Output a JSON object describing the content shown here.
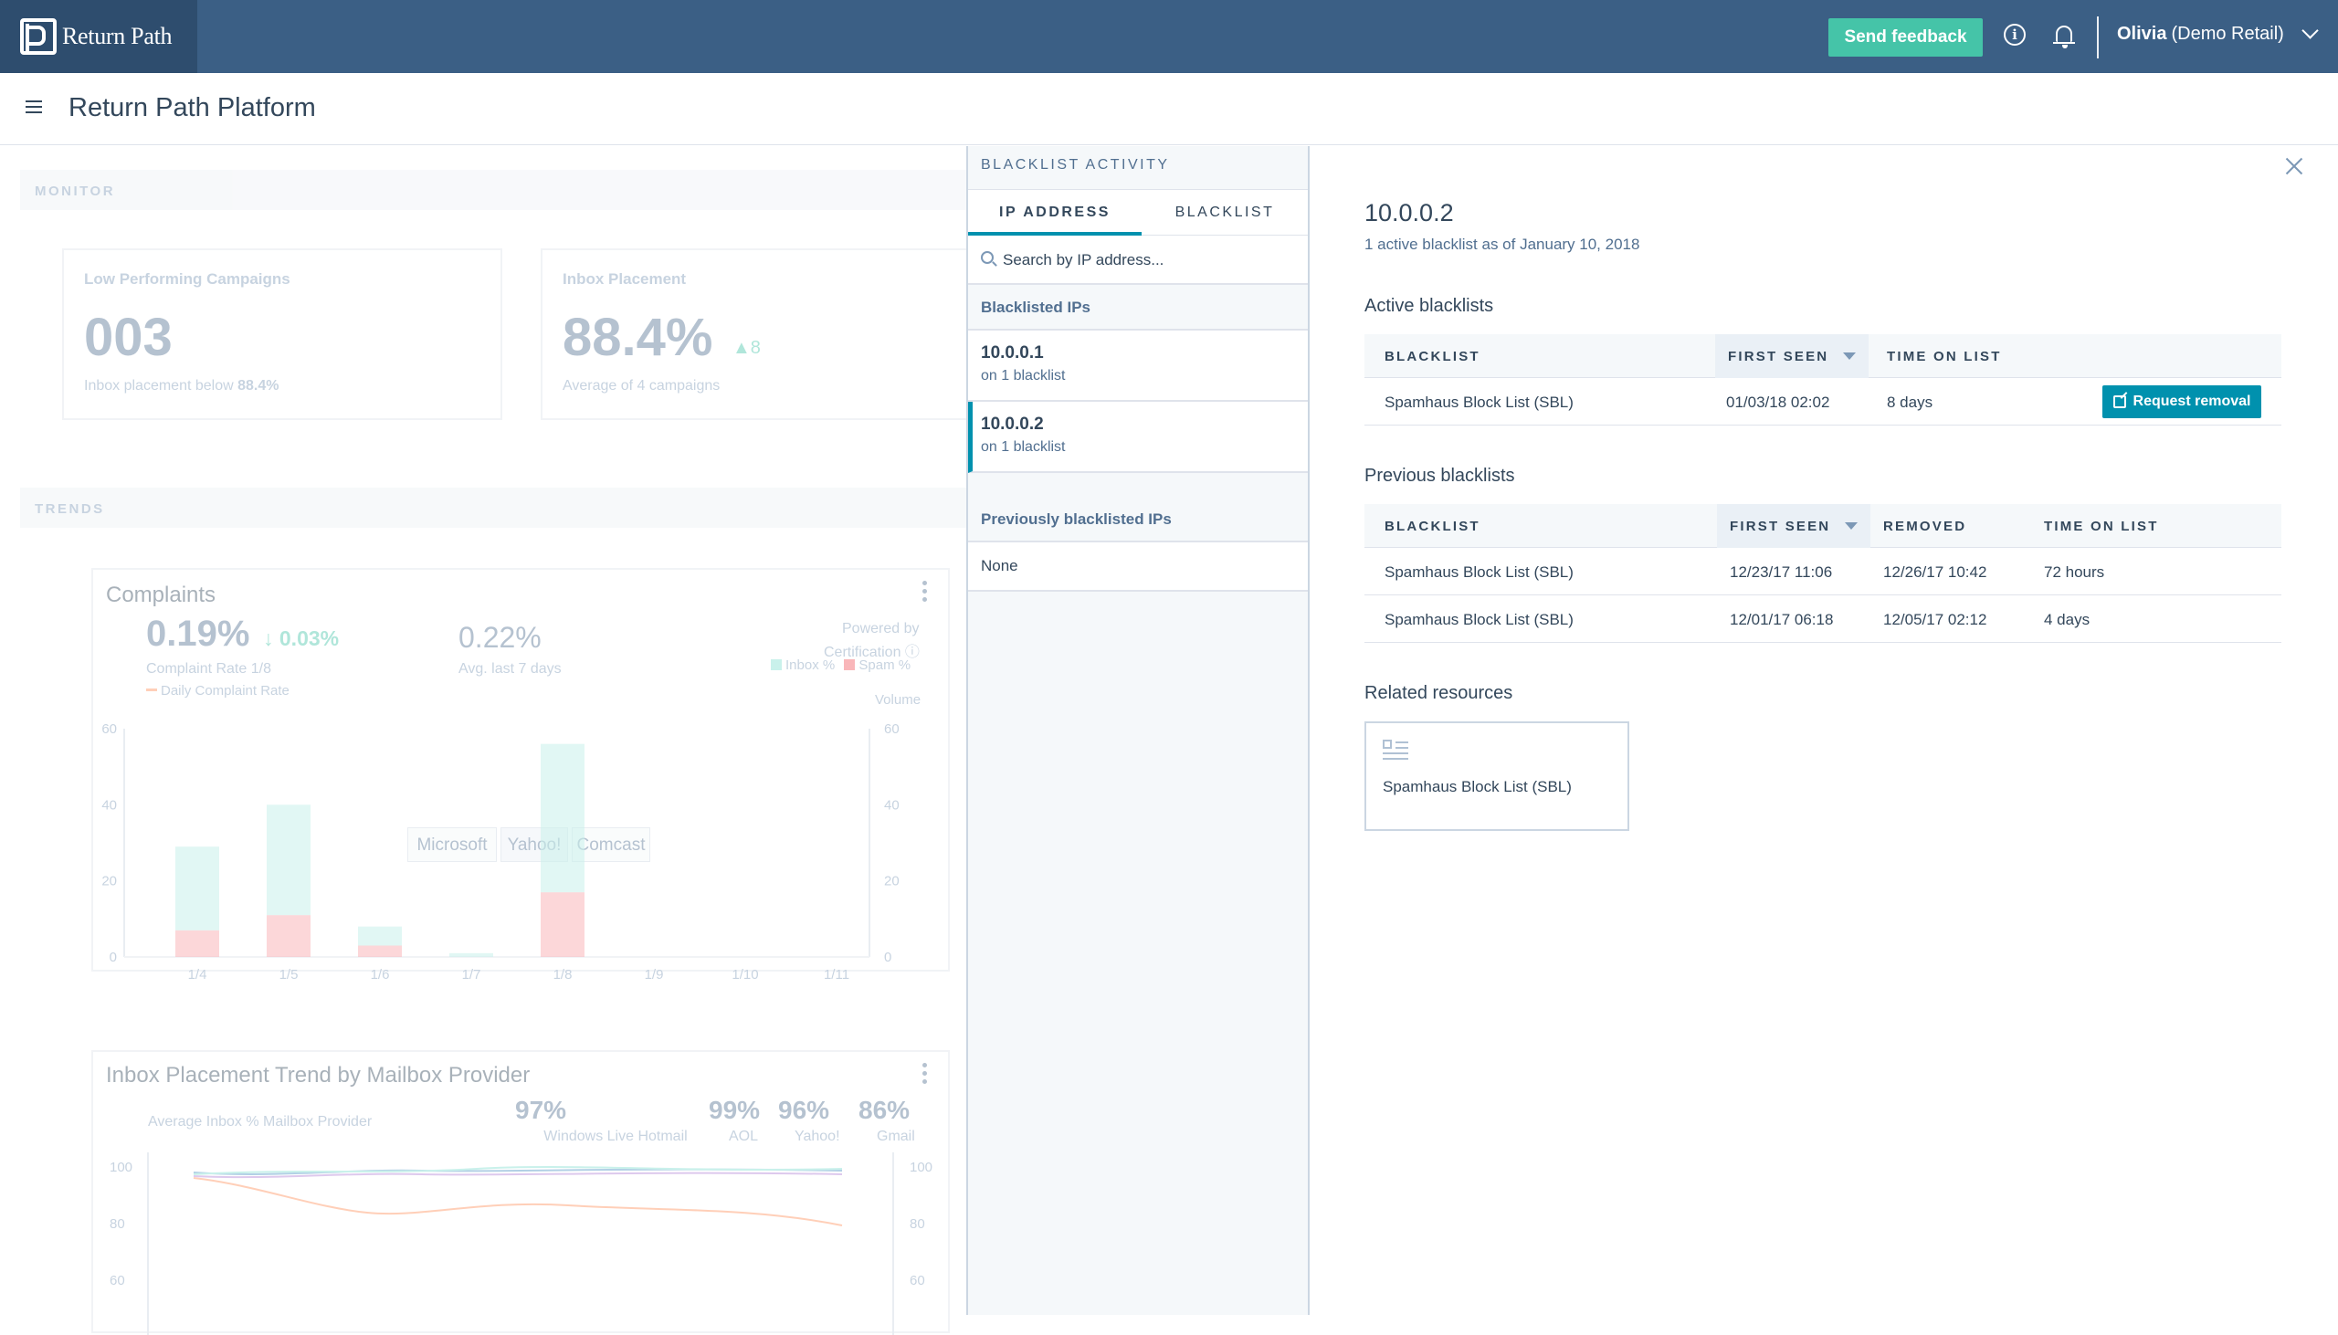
{
  "brand": {
    "name": "Return Path"
  },
  "topbar": {
    "feedback_label": "Send feedback",
    "user_name": "Olivia",
    "user_org": "(Demo Retail)"
  },
  "header": {
    "title": "Return Path Platform"
  },
  "dashboard": {
    "monitor_label": "MONITOR",
    "trends_label": "TRENDS",
    "low_perf": {
      "label": "Low Performing Campaigns",
      "value": "003",
      "sub_prefix": "Inbox placement below",
      "sub_value": "88.4%"
    },
    "inbox": {
      "label": "Inbox Placement",
      "value": "88.4%",
      "delta": "8",
      "sub": "Average of 4 campaigns"
    },
    "complaints": {
      "title": "Complaints",
      "rate": "0.19%",
      "change": "0.03%",
      "rate_label": "Complaint Rate 1/8",
      "avg": "0.22%",
      "avg_label": "Avg. last 7 days",
      "powered_by": "Powered by",
      "certification": "Certification",
      "legend_inbox": "Inbox %",
      "legend_spam": "Spam %",
      "legend_daily": "Daily Complaint Rate",
      "volume_label": "Volume",
      "providers": [
        "Microsoft",
        "Yahoo!",
        "Comcast"
      ]
    },
    "inbox_trend": {
      "title": "Inbox Placement Trend by Mailbox Provider",
      "subtitle": "Average Inbox % Mailbox Provider",
      "providers": [
        {
          "value": "97%",
          "name": "Windows Live Hotmail"
        },
        {
          "value": "99%",
          "name": "AOL"
        },
        {
          "value": "96%",
          "name": "Yahoo!"
        },
        {
          "value": "86%",
          "name": "Gmail"
        }
      ],
      "y_ticks": [
        "100",
        "80",
        "60"
      ]
    }
  },
  "chart_data": {
    "type": "bar",
    "title": "Complaints",
    "categories": [
      "1/4",
      "1/5",
      "1/6",
      "1/7",
      "1/8",
      "1/9",
      "1/10",
      "1/11"
    ],
    "series": [
      {
        "name": "Spam %",
        "values": [
          7,
          11,
          3,
          0,
          17,
          0,
          0,
          0
        ],
        "color": "#f2545b"
      },
      {
        "name": "Inbox %",
        "values": [
          22,
          29,
          5,
          1,
          39,
          0,
          0,
          0
        ],
        "color": "#7fded1"
      }
    ],
    "stacked": true,
    "ylim": [
      0,
      60
    ],
    "y_ticks": [
      "60",
      "40",
      "20",
      "0"
    ]
  },
  "blacklist_panel": {
    "header": "BLACKLIST ACTIVITY",
    "tabs": [
      "IP ADDRESS",
      "BLACKLIST"
    ],
    "search_placeholder": "Search by IP address...",
    "blacklisted_heading": "Blacklisted IPs",
    "items": [
      {
        "ip": "10.0.0.1",
        "sub": "on 1 blacklist"
      },
      {
        "ip": "10.0.0.2",
        "sub": "on 1 blacklist"
      }
    ],
    "previous_heading": "Previously blacklisted IPs",
    "previous_none": "None"
  },
  "detail": {
    "ip": "10.0.0.2",
    "subtitle": "1 active blacklist as of January 10, 2018",
    "active_heading": "Active blacklists",
    "active_columns": [
      "BLACKLIST",
      "FIRST SEEN",
      "TIME ON LIST"
    ],
    "active_rows": [
      {
        "blacklist": "Spamhaus Block List (SBL)",
        "first_seen": "01/03/18 02:02",
        "time_on_list": "8 days"
      }
    ],
    "request_removal": "Request removal",
    "previous_heading": "Previous blacklists",
    "previous_columns": [
      "BLACKLIST",
      "FIRST SEEN",
      "REMOVED",
      "TIME ON LIST"
    ],
    "previous_rows": [
      {
        "blacklist": "Spamhaus Block List (SBL)",
        "first_seen": "12/23/17 11:06",
        "removed": "12/26/17 10:42",
        "time_on_list": "72 hours"
      },
      {
        "blacklist": "Spamhaus Block List (SBL)",
        "first_seen": "12/01/17 06:18",
        "removed": "12/05/17 02:12",
        "time_on_list": "4 days"
      }
    ],
    "related_heading": "Related resources",
    "related_item": "Spamhaus Block List (SBL)"
  },
  "colors": {
    "topbar": "#3b5f85",
    "brand_bg": "#2e4d6e",
    "accent": "#0091ae",
    "feedback": "#45c4a8"
  }
}
